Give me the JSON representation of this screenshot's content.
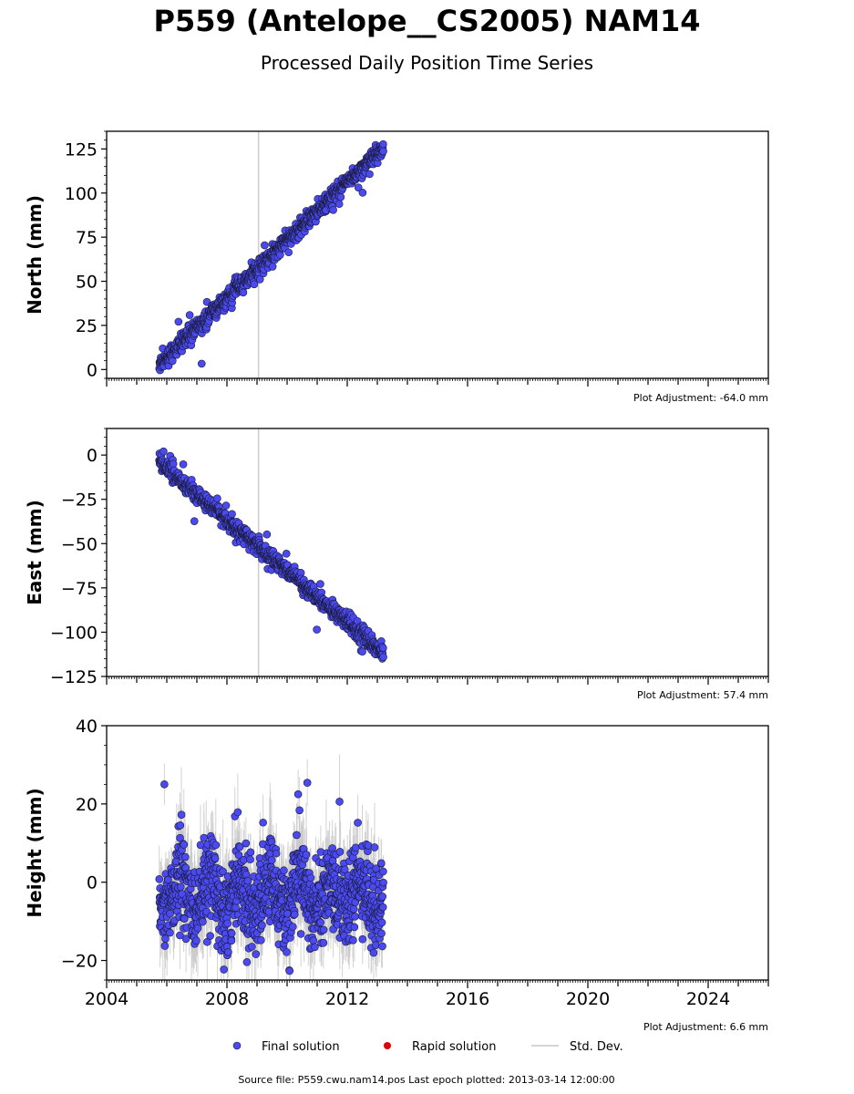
{
  "title": "P559 (Antelope__CS2005) NAM14",
  "subtitle": "Processed Daily Position Time Series",
  "source_line": "Source file: P559.cwu.nam14.pos  Last epoch plotted: 2013-03-14 12:00:00",
  "colors": {
    "final": "#4a4af0",
    "rapid": "#e00000",
    "stddev": "#c8c8c8",
    "marker_edge": "#1a1a3a",
    "vline": "#cccccc"
  },
  "legend": [
    {
      "label": "Final solution",
      "kind": "dot",
      "color": "#4a4af0"
    },
    {
      "label": "Rapid solution",
      "kind": "dot",
      "color": "#e00000"
    },
    {
      "label": "Std. Dev.",
      "kind": "line",
      "color": "#c8c8c8"
    }
  ],
  "chart_data": [
    {
      "type": "scatter",
      "ylabel": "North (mm)",
      "adjustment": "Plot Adjustment: -64.0 mm",
      "xlim": [
        2004.0,
        2026.0
      ],
      "ylim": [
        -5,
        135
      ],
      "yticks": [
        0,
        25,
        50,
        75,
        100,
        125
      ],
      "yminor": 5,
      "show_xticklabels": false,
      "vline": 2009.05,
      "series": [
        {
          "x_start": 2005.75,
          "x_end": 2013.2,
          "y_start": 3,
          "y_end": 126,
          "noise": 2.4,
          "outlier_rate": 0.05,
          "outlier_scale": 7,
          "n": 900
        }
      ]
    },
    {
      "type": "scatter",
      "ylabel": "East (mm)",
      "adjustment": "Plot Adjustment: 57.4 mm",
      "xlim": [
        2004.0,
        2026.0
      ],
      "ylim": [
        -125,
        15
      ],
      "yticks": [
        0,
        -25,
        -50,
        -75,
        -100,
        -125
      ],
      "yminor": 5,
      "show_xticklabels": false,
      "vline": 2009.05,
      "series": [
        {
          "x_start": 2005.75,
          "x_end": 2013.2,
          "y_start": -4,
          "y_end": -112,
          "noise": 2.3,
          "outlier_rate": 0.05,
          "outlier_scale": 6,
          "n": 900
        }
      ]
    },
    {
      "type": "scatter",
      "ylabel": "Height (mm)",
      "adjustment": "Plot Adjustment: 6.6 mm",
      "xlim": [
        2004.0,
        2026.0
      ],
      "ylim": [
        -25,
        40
      ],
      "yticks": [
        -20,
        0,
        20,
        40
      ],
      "yminor": 5,
      "show_xticklabels": true,
      "xticks": [
        2004,
        2008,
        2012,
        2016,
        2020,
        2024
      ],
      "series": [
        {
          "x_start": 2005.75,
          "x_end": 2013.2,
          "y_start": -3,
          "y_end": -3,
          "noise": 5.5,
          "outlier_rate": 0.03,
          "outlier_scale": 14,
          "n": 1100,
          "stddev": true,
          "annual": 4
        }
      ]
    }
  ]
}
